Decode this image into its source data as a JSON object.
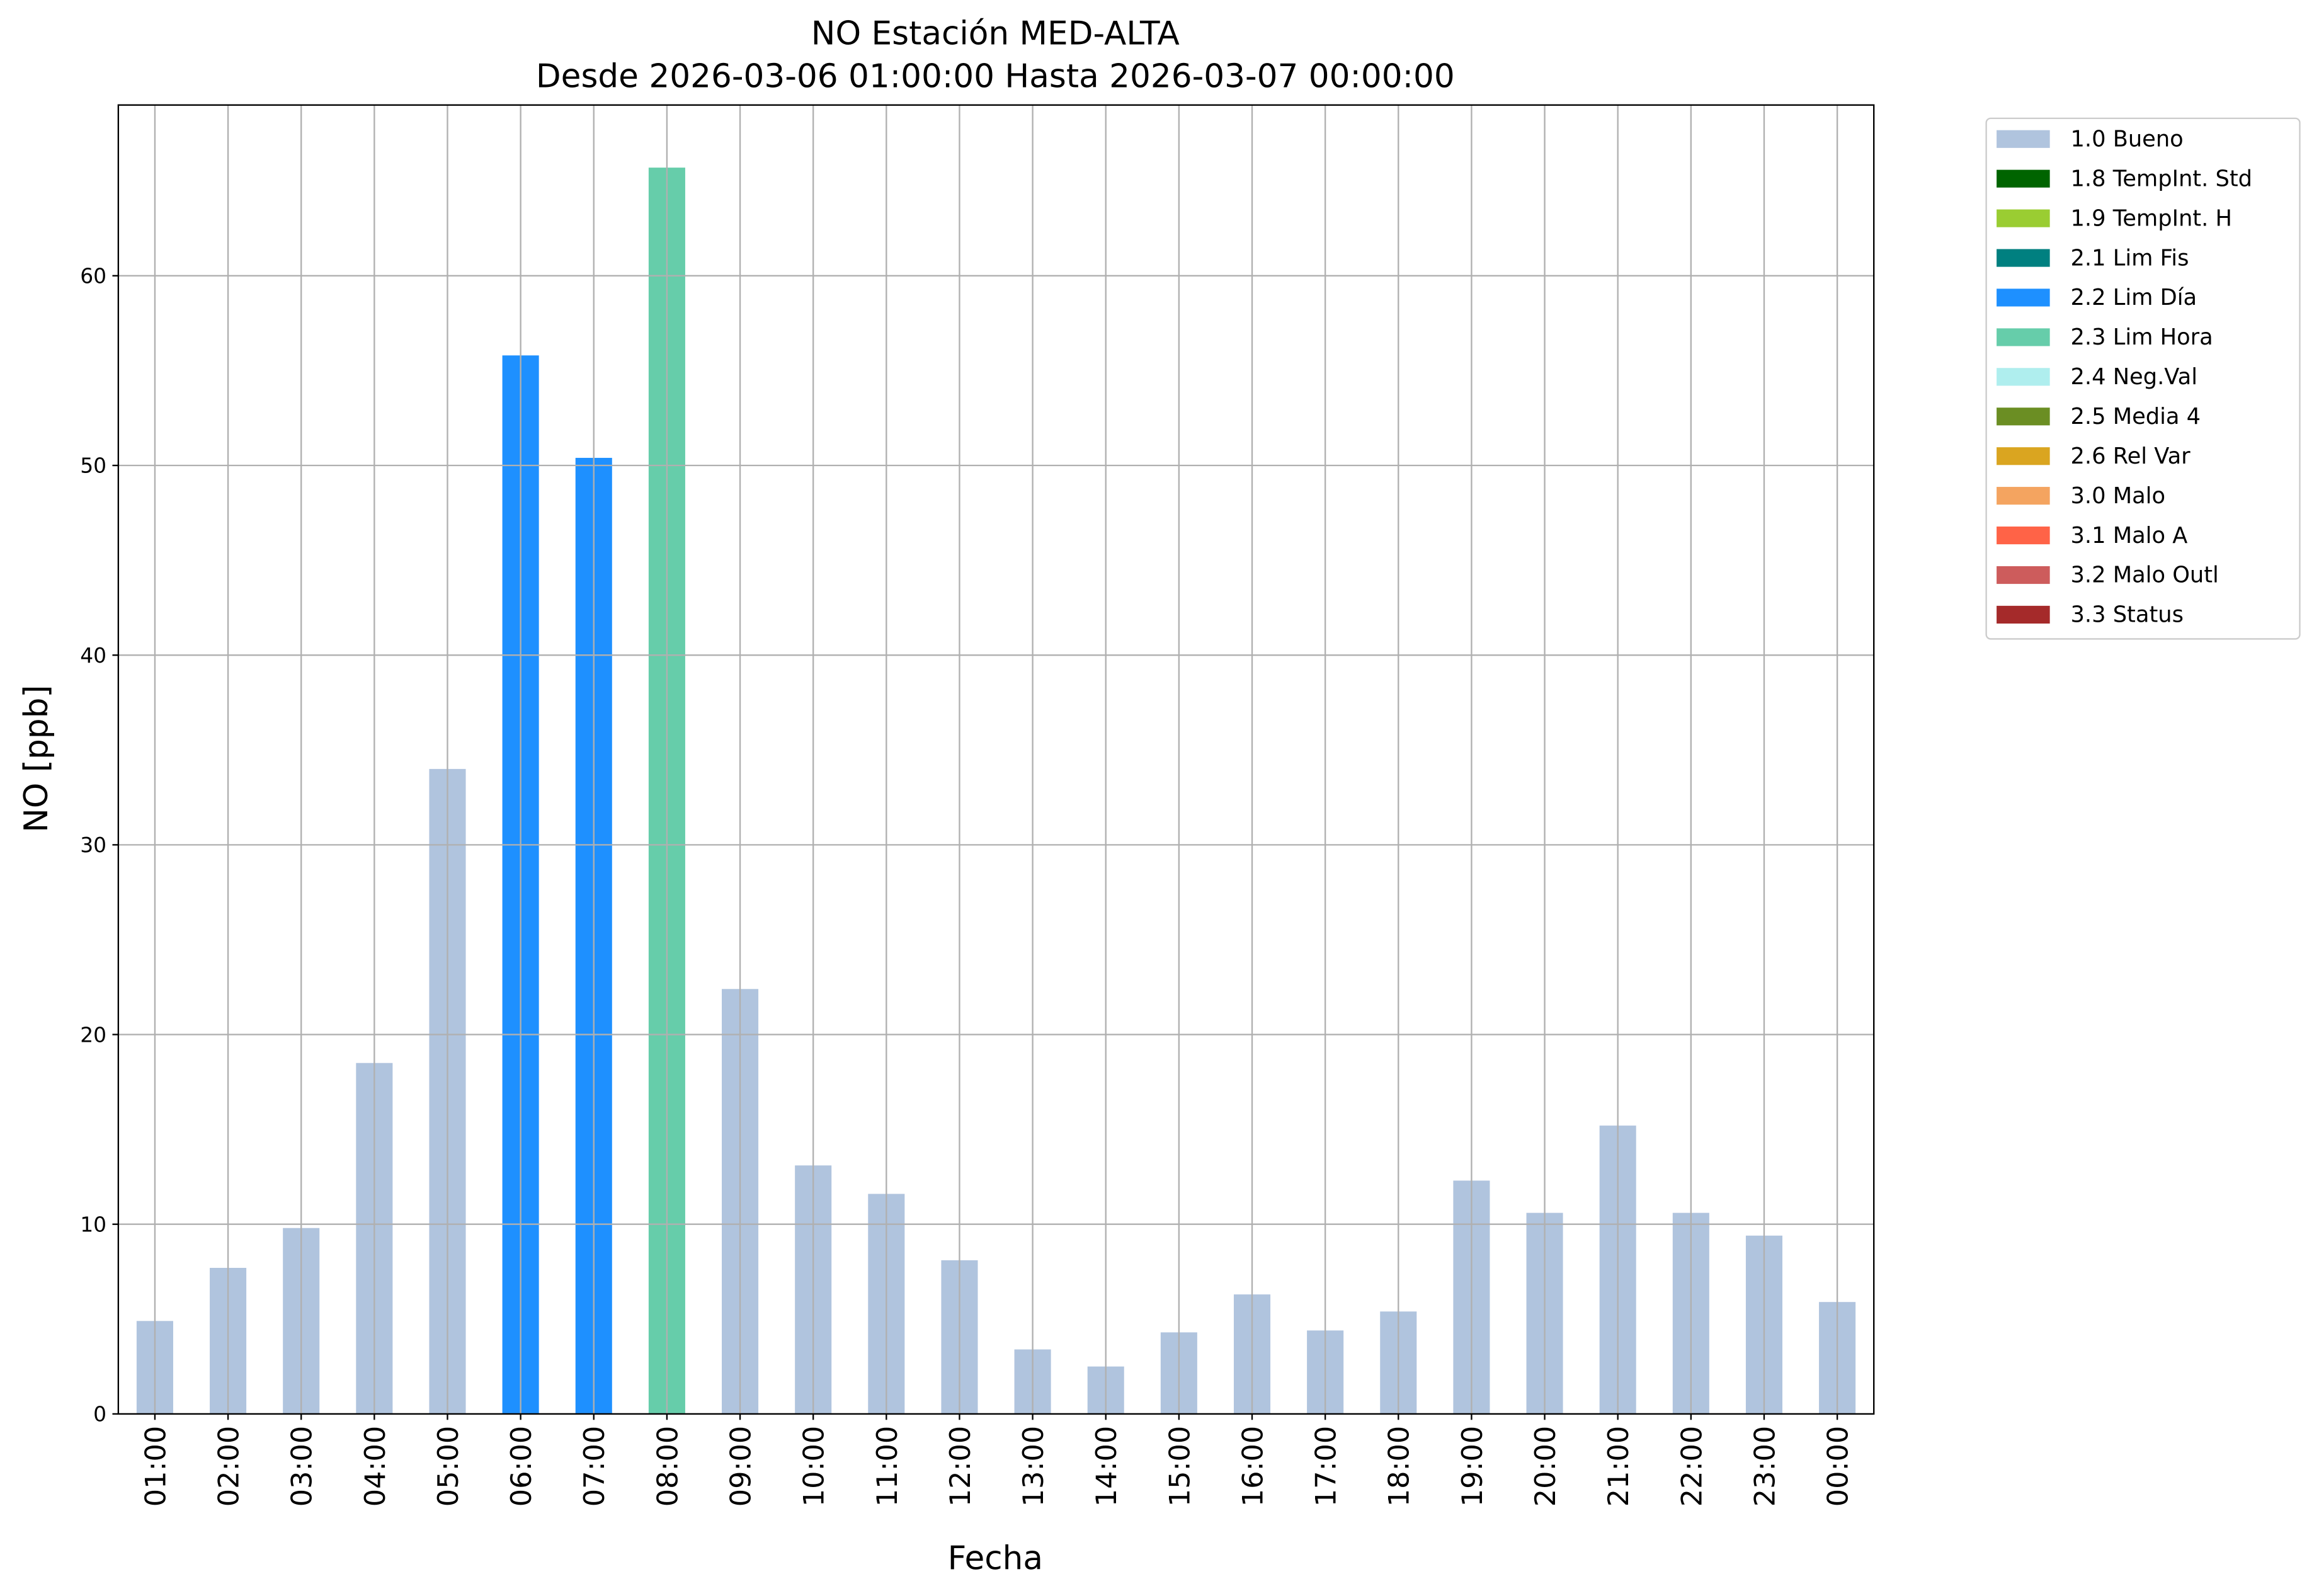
{
  "chart_data": {
    "type": "bar",
    "stacked": true,
    "title": "NO Estación MED-ALTA",
    "subtitle": "Desde 2026-03-06 01:00:00 Hasta 2026-03-07 00:00:00",
    "x_label": "Fecha",
    "y_label": "NO [ppb]",
    "categories": [
      "01:00",
      "02:00",
      "03:00",
      "04:00",
      "05:00",
      "06:00",
      "07:00",
      "08:00",
      "09:00",
      "10:00",
      "11:00",
      "12:00",
      "13:00",
      "14:00",
      "15:00",
      "16:00",
      "17:00",
      "18:00",
      "19:00",
      "20:00",
      "21:00",
      "22:00",
      "23:00",
      "00:00"
    ],
    "series": [
      {
        "name": "1.0 Bueno",
        "color": "#b0c4de",
        "values": [
          4.9,
          7.7,
          9.8,
          18.5,
          34.0,
          null,
          null,
          null,
          22.4,
          13.1,
          11.6,
          8.1,
          3.4,
          2.5,
          4.3,
          6.3,
          4.4,
          5.4,
          12.3,
          10.6,
          15.2,
          10.6,
          9.4,
          5.9
        ]
      },
      {
        "name": "1.8 TempInt. Std",
        "color": "#006400",
        "values": [
          null,
          null,
          null,
          null,
          null,
          null,
          null,
          null,
          null,
          null,
          null,
          null,
          null,
          null,
          null,
          null,
          null,
          null,
          null,
          null,
          null,
          null,
          null,
          null
        ]
      },
      {
        "name": "1.9 TempInt. H",
        "color": "#9acd32",
        "values": [
          null,
          null,
          null,
          null,
          null,
          null,
          null,
          null,
          null,
          null,
          null,
          null,
          null,
          null,
          null,
          null,
          null,
          null,
          null,
          null,
          null,
          null,
          null,
          null
        ]
      },
      {
        "name": "2.1 Lim Fis",
        "color": "#008080",
        "values": [
          null,
          null,
          null,
          null,
          null,
          null,
          null,
          null,
          null,
          null,
          null,
          null,
          null,
          null,
          null,
          null,
          null,
          null,
          null,
          null,
          null,
          null,
          null,
          null
        ]
      },
      {
        "name": "2.2 Lim Día",
        "color": "#1e90ff",
        "values": [
          null,
          null,
          null,
          null,
          null,
          55.8,
          50.4,
          null,
          null,
          null,
          null,
          null,
          null,
          null,
          null,
          null,
          null,
          null,
          null,
          null,
          null,
          null,
          null,
          null
        ]
      },
      {
        "name": "2.3 Lim Hora",
        "color": "#66cdaa",
        "values": [
          null,
          null,
          null,
          null,
          null,
          null,
          null,
          65.7,
          null,
          null,
          null,
          null,
          null,
          null,
          null,
          null,
          null,
          null,
          null,
          null,
          null,
          null,
          null,
          null
        ]
      },
      {
        "name": "2.4 Neg.Val",
        "color": "#afeeee",
        "values": [
          null,
          null,
          null,
          null,
          null,
          null,
          null,
          null,
          null,
          null,
          null,
          null,
          null,
          null,
          null,
          null,
          null,
          null,
          null,
          null,
          null,
          null,
          null,
          null
        ]
      },
      {
        "name": "2.5 Media 4",
        "color": "#6b8e23",
        "values": [
          null,
          null,
          null,
          null,
          null,
          null,
          null,
          null,
          null,
          null,
          null,
          null,
          null,
          null,
          null,
          null,
          null,
          null,
          null,
          null,
          null,
          null,
          null,
          null
        ]
      },
      {
        "name": "2.6 Rel Var",
        "color": "#daa520",
        "values": [
          null,
          null,
          null,
          null,
          null,
          null,
          null,
          null,
          null,
          null,
          null,
          null,
          null,
          null,
          null,
          null,
          null,
          null,
          null,
          null,
          null,
          null,
          null,
          null
        ]
      },
      {
        "name": "3.0 Malo",
        "color": "#f4a460",
        "values": [
          null,
          null,
          null,
          null,
          null,
          null,
          null,
          null,
          null,
          null,
          null,
          null,
          null,
          null,
          null,
          null,
          null,
          null,
          null,
          null,
          null,
          null,
          null,
          null
        ]
      },
      {
        "name": "3.1 Malo A",
        "color": "#ff6347",
        "values": [
          null,
          null,
          null,
          null,
          null,
          null,
          null,
          null,
          null,
          null,
          null,
          null,
          null,
          null,
          null,
          null,
          null,
          null,
          null,
          null,
          null,
          null,
          null,
          null
        ]
      },
      {
        "name": "3.2 Malo Outl",
        "color": "#cd5c5c",
        "values": [
          null,
          null,
          null,
          null,
          null,
          null,
          null,
          null,
          null,
          null,
          null,
          null,
          null,
          null,
          null,
          null,
          null,
          null,
          null,
          null,
          null,
          null,
          null,
          null
        ]
      },
      {
        "name": "3.3 Status",
        "color": "#a52a2a",
        "values": [
          null,
          null,
          null,
          null,
          null,
          null,
          null,
          null,
          null,
          null,
          null,
          null,
          null,
          null,
          null,
          null,
          null,
          null,
          null,
          null,
          null,
          null,
          null,
          null
        ]
      }
    ],
    "ylim": [
      0,
      69
    ],
    "yticks": [
      0,
      10,
      20,
      30,
      40,
      50,
      60
    ],
    "grid": true,
    "legend": "outside-upper-right"
  }
}
